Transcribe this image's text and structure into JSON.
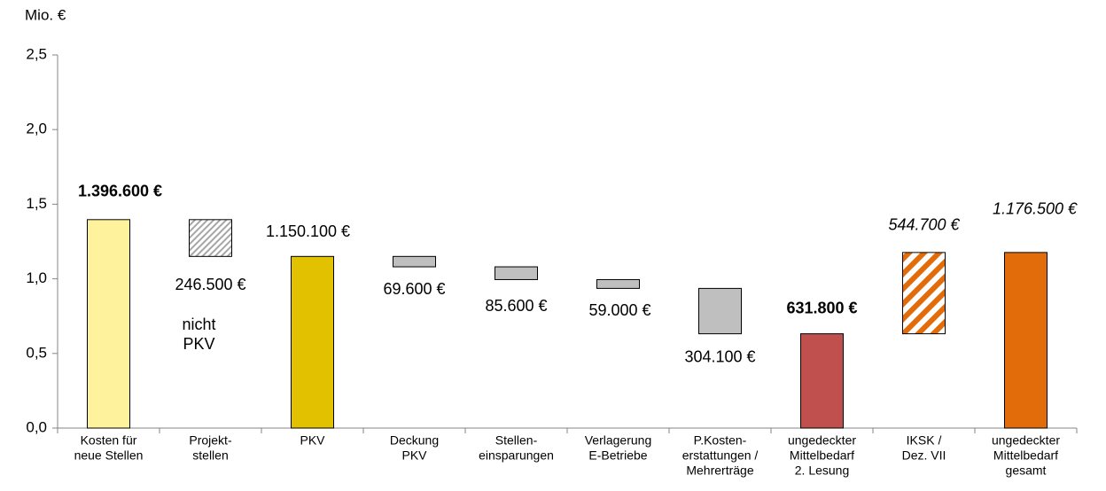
{
  "chart_data": {
    "type": "waterfall",
    "y_label": "Mio. €",
    "categories": [
      [
        "Kosten für",
        "neue Stellen"
      ],
      [
        "Projekt-",
        "stellen"
      ],
      [
        "PKV"
      ],
      [
        "Deckung",
        "PKV"
      ],
      [
        "Stellen-",
        "einsparungen"
      ],
      [
        "Verlagerung",
        "E-Betriebe"
      ],
      [
        "P.Kosten-",
        "erstattungen /",
        "Mehrerträge"
      ],
      [
        "ungedeckter",
        "Mittelbedarf",
        "2. Lesung"
      ],
      [
        "IKSK /",
        "Dez. VII"
      ],
      [
        "ungedeckter",
        "Mittelbedarf",
        "gesamt"
      ]
    ],
    "values": [
      1.3966,
      0.2465,
      1.1501,
      0.0696,
      0.0856,
      0.059,
      0.3041,
      0.6318,
      0.5447,
      1.1765
    ],
    "kinds": [
      "total",
      "decrease",
      "total",
      "decrease",
      "decrease",
      "decrease",
      "decrease",
      "total",
      "increase",
      "total"
    ],
    "value_labels": [
      "1.396.600 €",
      "246.500 €",
      "1.150.100 €",
      "69.600 €",
      "85.600 €",
      "59.000 €",
      "304.100 €",
      "631.800 €",
      "544.700 €",
      "1.176.500 €"
    ],
    "label_styles": [
      "bold",
      "normal",
      "normal",
      "normal",
      "normal",
      "normal",
      "normal",
      "bold",
      "italic",
      "italic"
    ],
    "colors": [
      "#fff29c",
      "#a6a6a6",
      "#e2c100",
      "#bfbfbf",
      "#bfbfbf",
      "#bfbfbf",
      "#bfbfbf",
      "#c0504d",
      "#e36c0a",
      "#e36c0a"
    ],
    "hatched": [
      false,
      true,
      false,
      false,
      false,
      false,
      false,
      false,
      true,
      false
    ],
    "annotation": [
      "nicht",
      "PKV"
    ],
    "ylim": [
      0,
      2.5
    ],
    "yticks": [
      {
        "value": 0,
        "label": "0,0"
      },
      {
        "value": 0.5,
        "label": "0,5"
      },
      {
        "value": 1,
        "label": "1,0"
      },
      {
        "value": 1.5,
        "label": "1,5"
      },
      {
        "value": 2,
        "label": "2,0"
      },
      {
        "value": 2.5,
        "label": "2,5"
      }
    ],
    "grid": false
  }
}
